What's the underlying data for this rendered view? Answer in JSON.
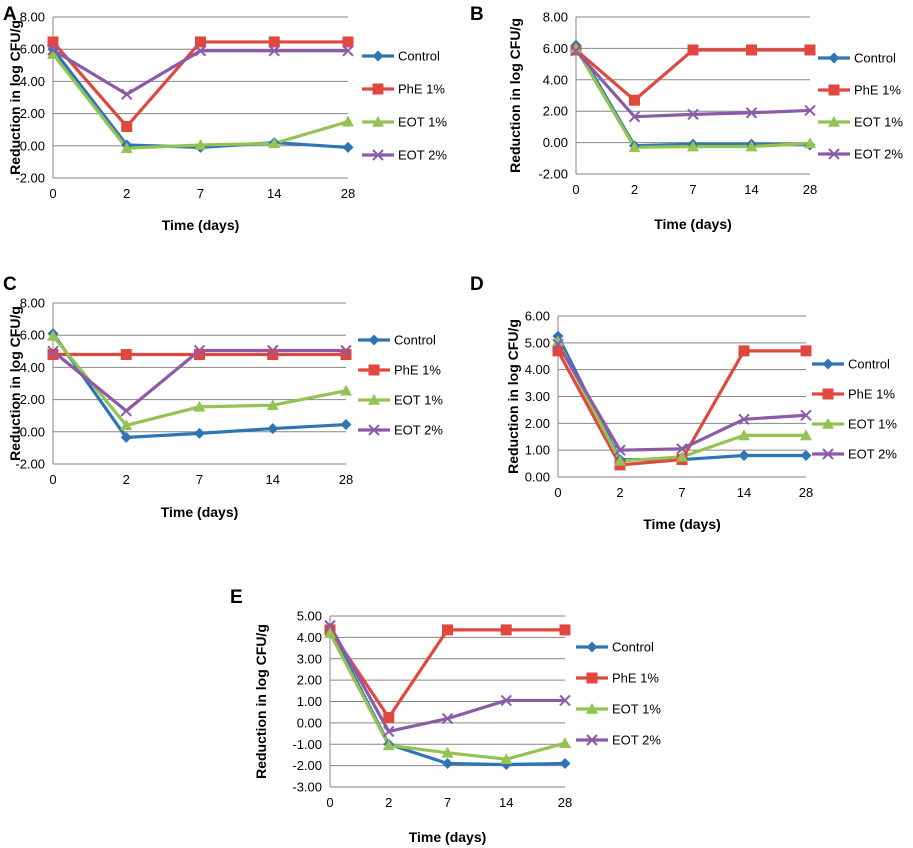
{
  "figure": {
    "series_colors": {
      "Control": "#2E75B6",
      "PhE 1%": "#E0483F",
      "EOT 1%": "#92C353",
      "EOT 2%": "#8C5BA8"
    },
    "series_markers": {
      "Control": "diamond-icon",
      "PhE 1%": "square-icon",
      "EOT 1%": "triangle-icon",
      "EOT 2%": "x-icon"
    }
  },
  "chart_data": [
    {
      "panel": "A",
      "type": "line",
      "categories": [
        "0",
        "2",
        "7",
        "14",
        "28"
      ],
      "xlabel": "Time (days)",
      "ylabel": "Reduction in log CFU/g",
      "ylim": [
        -2,
        8
      ],
      "ystep": 2,
      "yticks": [
        "-2.00",
        "0.00",
        "2.00",
        "4.00",
        "6.00",
        "8.00"
      ],
      "series": [
        {
          "name": "Control",
          "values": [
            6.0,
            0.05,
            -0.1,
            0.2,
            -0.1
          ]
        },
        {
          "name": "PhE 1%",
          "values": [
            6.45,
            1.2,
            6.45,
            6.45,
            6.45
          ]
        },
        {
          "name": "EOT 1%",
          "values": [
            5.7,
            -0.15,
            0.05,
            0.15,
            1.5
          ]
        },
        {
          "name": "EOT 2%",
          "values": [
            5.95,
            3.2,
            5.9,
            5.9,
            5.9
          ]
        }
      ]
    },
    {
      "panel": "B",
      "type": "line",
      "categories": [
        "0",
        "2",
        "7",
        "14",
        "28"
      ],
      "xlabel": "Time (days)",
      "ylabel": "Reduction in log CFU/g",
      "ylim": [
        -2,
        8
      ],
      "ystep": 2,
      "yticks": [
        "-2.00",
        "0.00",
        "2.00",
        "4.00",
        "6.00",
        "8.00"
      ],
      "series": [
        {
          "name": "Control",
          "values": [
            6.2,
            -0.2,
            -0.1,
            -0.1,
            -0.15
          ]
        },
        {
          "name": "PhE 1%",
          "values": [
            5.9,
            2.7,
            5.9,
            5.9,
            5.9
          ]
        },
        {
          "name": "EOT 1%",
          "values": [
            6.0,
            -0.3,
            -0.25,
            -0.25,
            -0.05
          ]
        },
        {
          "name": "EOT 2%",
          "values": [
            5.85,
            1.65,
            1.8,
            1.9,
            2.05
          ]
        }
      ]
    },
    {
      "panel": "C",
      "type": "line",
      "categories": [
        "0",
        "2",
        "7",
        "14",
        "28"
      ],
      "xlabel": "Time (days)",
      "ylabel": "Reduction in log CFU/g",
      "ylim": [
        -2,
        8
      ],
      "ystep": 2,
      "yticks": [
        "-2.00",
        "0.00",
        "2.00",
        "4.00",
        "6.00",
        "8.00"
      ],
      "series": [
        {
          "name": "Control",
          "values": [
            6.1,
            -0.35,
            -0.1,
            0.2,
            0.45
          ]
        },
        {
          "name": "PhE 1%",
          "values": [
            4.8,
            4.8,
            4.8,
            4.8,
            4.8
          ]
        },
        {
          "name": "EOT 1%",
          "values": [
            5.95,
            0.4,
            1.55,
            1.65,
            2.55
          ]
        },
        {
          "name": "EOT 2%",
          "values": [
            5.0,
            1.3,
            5.05,
            5.05,
            5.05
          ]
        }
      ]
    },
    {
      "panel": "D",
      "type": "line",
      "categories": [
        "0",
        "2",
        "7",
        "14",
        "28"
      ],
      "xlabel": "Time (days)",
      "ylabel": "Reduction in log CFU/g",
      "ylim": [
        0,
        6
      ],
      "ystep": 1,
      "yticks": [
        "0.00",
        "1.00",
        "2.00",
        "3.00",
        "4.00",
        "5.00",
        "6.00"
      ],
      "series": [
        {
          "name": "Control",
          "values": [
            5.25,
            0.65,
            0.65,
            0.8,
            0.8
          ]
        },
        {
          "name": "PhE 1%",
          "values": [
            4.7,
            0.45,
            0.65,
            4.7,
            4.7
          ]
        },
        {
          "name": "EOT 1%",
          "values": [
            5.05,
            0.6,
            0.75,
            1.55,
            1.55
          ]
        },
        {
          "name": "EOT 2%",
          "values": [
            4.95,
            1.0,
            1.05,
            2.15,
            2.3
          ]
        }
      ]
    },
    {
      "panel": "E",
      "type": "line",
      "categories": [
        "0",
        "2",
        "7",
        "14",
        "28"
      ],
      "xlabel": "Time (days)",
      "ylabel": "Reduction in log CFU/g",
      "ylim": [
        -3,
        5
      ],
      "ystep": 1,
      "yticks": [
        "-3.00",
        "-2.00",
        "-1.00",
        "0.00",
        "1.00",
        "2.00",
        "3.00",
        "4.00",
        "5.00"
      ],
      "series": [
        {
          "name": "Control",
          "values": [
            4.4,
            -1.0,
            -1.9,
            -1.95,
            -1.9
          ]
        },
        {
          "name": "PhE 1%",
          "values": [
            4.35,
            0.25,
            4.35,
            4.35,
            4.35
          ]
        },
        {
          "name": "EOT 1%",
          "values": [
            4.2,
            -1.05,
            -1.4,
            -1.7,
            -0.95
          ]
        },
        {
          "name": "EOT 2%",
          "values": [
            4.55,
            -0.4,
            0.2,
            1.05,
            1.05
          ]
        }
      ]
    }
  ]
}
